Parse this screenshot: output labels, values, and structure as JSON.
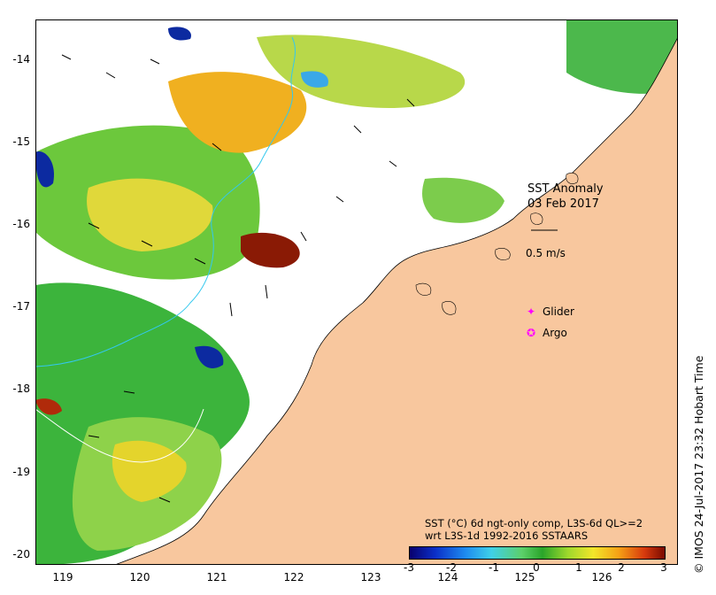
{
  "map": {
    "title": "SST Anomaly",
    "date": "03 Feb 2017",
    "vector_scale_label": "0.5 m/s",
    "legend": [
      {
        "symbol": "✦",
        "label": "Glider"
      },
      {
        "symbol": "✪",
        "label": "Argo"
      }
    ],
    "description_line1": "SST (°C) 6d ngt-only comp, L3S-6d QL>=2",
    "description_line2": "wrt L3S-1d 1992-2016 SSTAARS",
    "credit": "© IMOS 24-Jul-2017 23:32 Hobart Time",
    "lat_ticks": [
      "-14",
      "-15",
      "-16",
      "-17",
      "-18",
      "-19",
      "-20"
    ],
    "lon_ticks": [
      "119",
      "120",
      "121",
      "122",
      "123",
      "124",
      "125",
      "126"
    ],
    "colorbar_ticks": [
      "-3",
      "-2",
      "-1",
      "0",
      "1",
      "2",
      "3"
    ],
    "colors": {
      "land": "#f8c79e",
      "no_data": "#ffffff",
      "coast": "#000000",
      "bathymetry_contour": "#33c8ee",
      "glider_marker": "#ff00ff"
    }
  }
}
